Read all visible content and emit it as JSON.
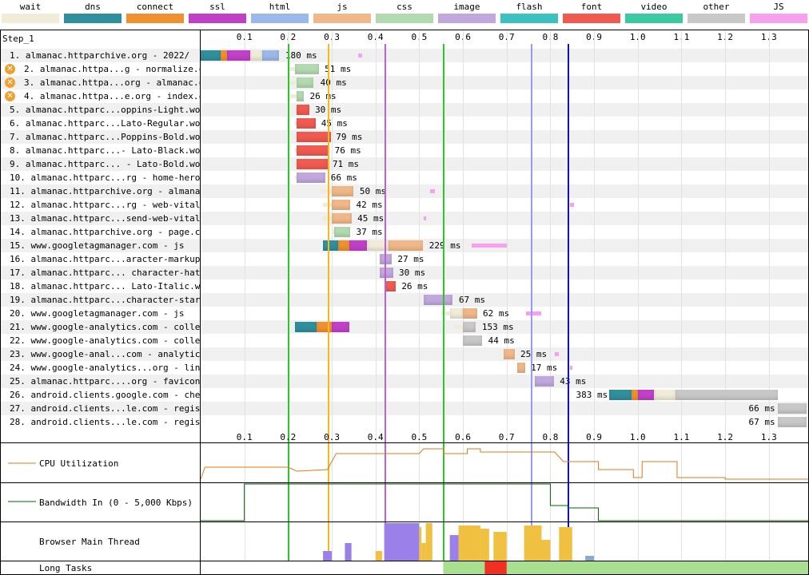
{
  "legend": [
    {
      "label": "wait",
      "color": "#f0ecd8"
    },
    {
      "label": "dns",
      "color": "#308f9d"
    },
    {
      "label": "connect",
      "color": "#f09030"
    },
    {
      "label": "ssl",
      "color": "#c040c8"
    },
    {
      "label": "html",
      "color": "#9ab8e8"
    },
    {
      "label": "js",
      "color": "#f0b888"
    },
    {
      "label": "css",
      "color": "#b2dab0"
    },
    {
      "label": "image",
      "color": "#c0a8dc"
    },
    {
      "label": "flash",
      "color": "#3cc0c0"
    },
    {
      "label": "font",
      "color": "#f05a50"
    },
    {
      "label": "video",
      "color": "#3cc8a0"
    },
    {
      "label": "other",
      "color": "#c8c8c8"
    },
    {
      "label": "JS Execution",
      "color": "#f8a0f0"
    }
  ],
  "step_label": "Step_1",
  "timeline": {
    "ticks": [
      "0.1",
      "0.2",
      "0.3",
      "0.4",
      "0.5",
      "0.6",
      "0.7",
      "0.8",
      "0.9",
      "1.0",
      "1.1",
      "1.2",
      "1.3"
    ],
    "max_seconds": 1.39
  },
  "requests": [
    {
      "label": "1. almanac.httparchive.org - 2022/",
      "duration": "180 ms",
      "warn": false
    },
    {
      "label": "2. almanac.httpa...g - normalize.css",
      "duration": "51 ms",
      "warn": true
    },
    {
      "label": "3. almanac.httpa...org - almanac.css",
      "duration": "40 ms",
      "warn": true
    },
    {
      "label": "4. almanac.httpa...e.org - index.css",
      "duration": "26 ms",
      "warn": true
    },
    {
      "label": "5. almanac.httparc...oppins-Light.woff2",
      "duration": "30 ms",
      "warn": false
    },
    {
      "label": "6. almanac.httparc...Lato-Regular.woff2",
      "duration": "45 ms",
      "warn": false
    },
    {
      "label": "7. almanac.httparc...Poppins-Bold.woff2",
      "duration": "79 ms",
      "warn": false
    },
    {
      "label": "8. almanac.httparc...- Lato-Black.woff2",
      "duration": "76 ms",
      "warn": false
    },
    {
      "label": "9. almanac.httparc... - Lato-Bold.woff2",
      "duration": "71 ms",
      "warn": false
    },
    {
      "label": "10. almanac.httparc...rg - home-hero.png",
      "duration": "66 ms",
      "warn": false
    },
    {
      "label": "11. almanac.httparchive.org - almanac.js",
      "duration": "50 ms",
      "warn": false
    },
    {
      "label": "12. almanac.httparc...rg - web-vitals.js",
      "duration": "42 ms",
      "warn": false
    },
    {
      "label": "13. almanac.httparc...send-web-vitals.js",
      "duration": "45 ms",
      "warn": false
    },
    {
      "label": "14. almanac.httparchive.org - page.css",
      "duration": "37 ms",
      "warn": false
    },
    {
      "label": "15. www.googletagmanager.com - js",
      "duration": "229 ms",
      "warn": false
    },
    {
      "label": "16. almanac.httparc...aracter-markup.png",
      "duration": "27 ms",
      "warn": false
    },
    {
      "label": "17. almanac.httparc... character-hat.png",
      "duration": "30 ms",
      "warn": false
    },
    {
      "label": "18. almanac.httparc... Lato-Italic.woff2",
      "duration": "26 ms",
      "warn": false
    },
    {
      "label": "19. almanac.httparc...character-star.png",
      "duration": "67 ms",
      "warn": false
    },
    {
      "label": "20. www.googletagmanager.com - js",
      "duration": "62 ms",
      "warn": false
    },
    {
      "label": "21. www.google-analytics.com - collect",
      "duration": "153 ms",
      "warn": false
    },
    {
      "label": "22. www.google-analytics.com - collect",
      "duration": "44 ms",
      "warn": false
    },
    {
      "label": "23. www.google-anal...com - analytics.js",
      "duration": "25 ms",
      "warn": false
    },
    {
      "label": "24. www.google-analytics...org - linkid.js",
      "duration": "17 ms",
      "warn": false
    },
    {
      "label": "25. almanac.httparc....org - favicon.ico",
      "duration": "43 ms",
      "warn": false
    },
    {
      "label": "26. android.clients.google.com - checkin",
      "duration": "383 ms",
      "warn": false
    },
    {
      "label": "27. android.clients...le.com - register3",
      "duration": "66 ms",
      "warn": false
    },
    {
      "label": "28. android.clients...le.com - register3",
      "duration": "67 ms",
      "warn": false
    }
  ],
  "panels": {
    "cpu": "CPU Utilization",
    "bandwidth": "Bandwidth In (0 - 5,000 Kbps)",
    "main_thread": "Browser Main Thread",
    "long_tasks": "Long Tasks"
  },
  "colors": {
    "start_render": "#28c828",
    "dom_interactive": "#f8b818",
    "dom_content_loaded": "#c060d8",
    "onload": "#1010c8",
    "document_complete": "#9898f8",
    "cpu_line": "#e07818",
    "bandwidth_line": "#006400",
    "long_task_green": "#a8e090",
    "long_task_red": "#f03020"
  }
}
